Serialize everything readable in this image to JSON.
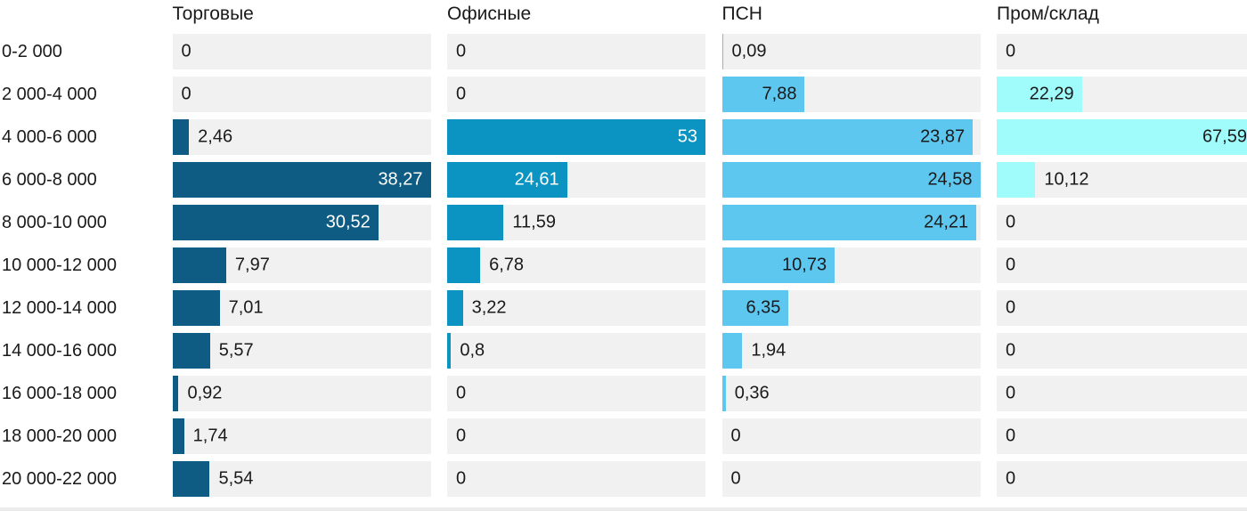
{
  "chart_data": {
    "type": "bar",
    "orientation": "horizontal",
    "scaling": "per_column_max",
    "decimal_separator": ",",
    "categories": [
      "0-2 000",
      "2 000-4 000",
      "4 000-6 000",
      "6 000-8 000",
      "8 000-10 000",
      "10 000-12 000",
      "12 000-14 000",
      "14 000-16 000",
      "16 000-18 000",
      "18 000-20 000",
      "20 000-22 000"
    ],
    "series": [
      {
        "name": "Торговые",
        "color": "#0e5c83",
        "label_color_inside": "#ffffff",
        "values": [
          0,
          0,
          2.46,
          38.27,
          30.52,
          7.97,
          7.01,
          5.57,
          0.92,
          1.74,
          5.54
        ],
        "labels": [
          "0",
          "0",
          "2,46",
          "38,27",
          "30,52",
          "7,97",
          "7,01",
          "5,57",
          "0,92",
          "1,74",
          "5,54"
        ]
      },
      {
        "name": "Офисные",
        "color": "#0b93c1",
        "label_color_inside": "#ffffff",
        "values": [
          0,
          0,
          53,
          24.61,
          11.59,
          6.78,
          3.22,
          0.8,
          0,
          0,
          0
        ],
        "labels": [
          "0",
          "0",
          "53",
          "24,61",
          "11,59",
          "6,78",
          "3,22",
          "0,8",
          "0",
          "0",
          "0"
        ]
      },
      {
        "name": "ПСН",
        "color": "#5ec7f0",
        "label_color_inside": "#1a1a1a",
        "values": [
          0.09,
          7.88,
          23.87,
          24.58,
          24.21,
          10.73,
          6.35,
          1.94,
          0.36,
          0,
          0
        ],
        "labels": [
          "0,09",
          "7,88",
          "23,87",
          "24,58",
          "24,21",
          "10,73",
          "6,35",
          "1,94",
          "0,36",
          "0",
          "0"
        ]
      },
      {
        "name": "Пром/склад",
        "color": "#9ffcfa",
        "label_color_inside": "#1a1a1a",
        "values": [
          0,
          22.29,
          67.59,
          10.12,
          0,
          0,
          0,
          0,
          0,
          0,
          0
        ],
        "labels": [
          "0",
          "22,29",
          "67,59",
          "10,12",
          "0",
          "0",
          "0",
          "0",
          "0",
          "0",
          "0"
        ]
      }
    ]
  },
  "colors": {
    "page_background": "#ffffff",
    "cell_background": "#f1f1f1",
    "text": "#1a1a1a",
    "bottom_strip": "#ececec"
  }
}
